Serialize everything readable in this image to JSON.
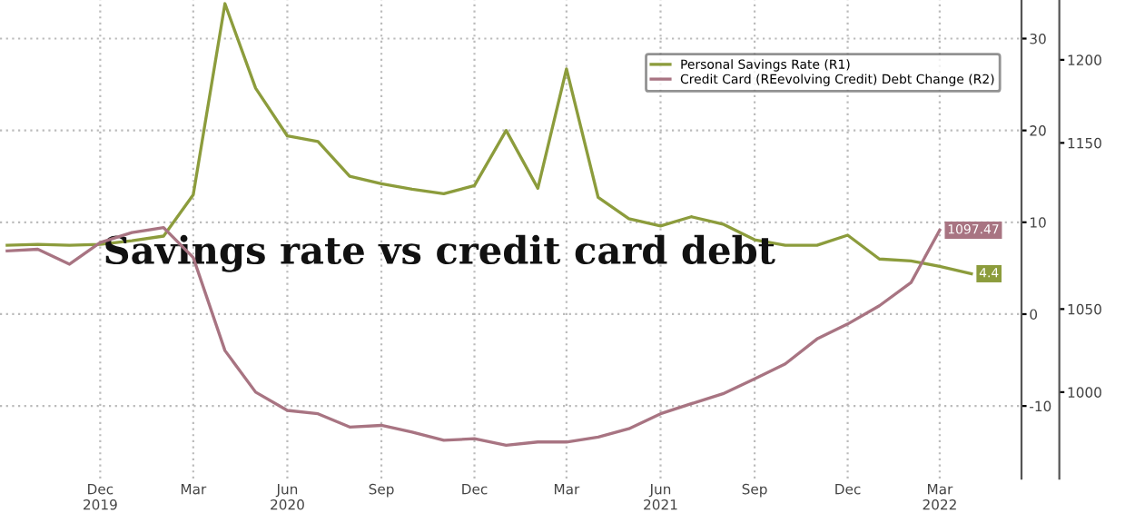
{
  "chart_data": {
    "type": "line",
    "title": "Savings rate vs credit card debt",
    "x": [
      "2019-09",
      "2019-10",
      "2019-11",
      "2019-12",
      "2020-01",
      "2020-02",
      "2020-03",
      "2020-04",
      "2020-05",
      "2020-06",
      "2020-07",
      "2020-08",
      "2020-09",
      "2020-10",
      "2020-11",
      "2020-12",
      "2021-01",
      "2021-02",
      "2021-03",
      "2021-04",
      "2021-05",
      "2021-06",
      "2021-07",
      "2021-08",
      "2021-09",
      "2021-10",
      "2021-11",
      "2021-12",
      "2022-01",
      "2022-02",
      "2022-03",
      "2022-04"
    ],
    "series": [
      {
        "name": "Personal Savings Rate (R1)",
        "color": "#8c9c3c",
        "values": [
          7.5,
          7.6,
          7.5,
          7.6,
          8.0,
          8.5,
          13.0,
          33.8,
          24.6,
          19.4,
          18.8,
          15.0,
          14.2,
          13.6,
          13.1,
          14.0,
          20.0,
          13.7,
          26.7,
          12.7,
          10.4,
          9.6,
          10.6,
          9.8,
          8.1,
          7.5,
          7.5,
          8.6,
          6.0,
          5.8,
          5.2,
          4.4
        ],
        "value_labels": [
          null,
          null,
          null,
          null,
          null,
          null,
          null,
          null,
          null,
          null,
          null,
          null,
          null,
          null,
          null,
          null,
          null,
          null,
          null,
          null,
          null,
          null,
          null,
          null,
          null,
          null,
          null,
          null,
          null,
          null,
          null,
          "4.4"
        ]
      },
      {
        "name": "Credit Card (REevolving Credit) Debt Change (R2)",
        "color": "#a87482",
        "axis": "y2",
        "x": [
          "2019-09",
          "2019-10",
          "2019-11",
          "2019-12",
          "2020-01",
          "2020-02",
          "2020-03",
          "2020-04",
          "2020-05",
          "2020-06",
          "2020-07",
          "2020-08",
          "2020-09",
          "2020-10",
          "2020-11",
          "2020-12",
          "2021-01",
          "2021-02",
          "2021-03",
          "2021-04",
          "2021-05",
          "2021-06",
          "2021-07",
          "2021-08",
          "2021-09",
          "2021-10",
          "2021-11",
          "2021-12",
          "2022-01",
          "2022-02",
          "2022-03"
        ],
        "values": [
          1085,
          1086,
          1077,
          1090,
          1096,
          1099,
          1081,
          1025,
          1000,
          989,
          987,
          979,
          980,
          976,
          971,
          972,
          968,
          970,
          970,
          973,
          978,
          987,
          993,
          999,
          1008,
          1017,
          1032,
          1041,
          1052,
          1066,
          1097.47
        ],
        "value_labels": [
          null,
          null,
          null,
          null,
          null,
          null,
          null,
          null,
          null,
          null,
          null,
          null,
          null,
          null,
          null,
          null,
          null,
          null,
          null,
          null,
          null,
          null,
          null,
          null,
          null,
          null,
          null,
          null,
          null,
          null,
          "1097.47"
        ]
      }
    ],
    "xlim": [
      "2019-08-25",
      "2022-05-20"
    ],
    "xticks": [
      {
        "value": "2019-12-01",
        "label": "Dec\n2019"
      },
      {
        "value": "2020-03-01",
        "label": "Mar"
      },
      {
        "value": "2020-06-01",
        "label": "Jun\n2020"
      },
      {
        "value": "2020-09-01",
        "label": "Sep"
      },
      {
        "value": "2020-12-01",
        "label": "Dec"
      },
      {
        "value": "2021-03-01",
        "label": "Mar"
      },
      {
        "value": "2021-06-01",
        "label": "Jun\n2021"
      },
      {
        "value": "2021-09-01",
        "label": "Sep"
      },
      {
        "value": "2021-12-01",
        "label": "Dec"
      },
      {
        "value": "2022-03-01",
        "label": "Mar\n2022"
      }
    ],
    "ylim": [
      -17.9,
      34.2
    ],
    "yticks": [
      -10,
      0,
      10,
      20,
      30
    ],
    "y2lim": [
      948,
      1236
    ],
    "y2ticks": [
      1000,
      1050,
      1150,
      1200
    ],
    "grid": true,
    "legend": "top right"
  }
}
